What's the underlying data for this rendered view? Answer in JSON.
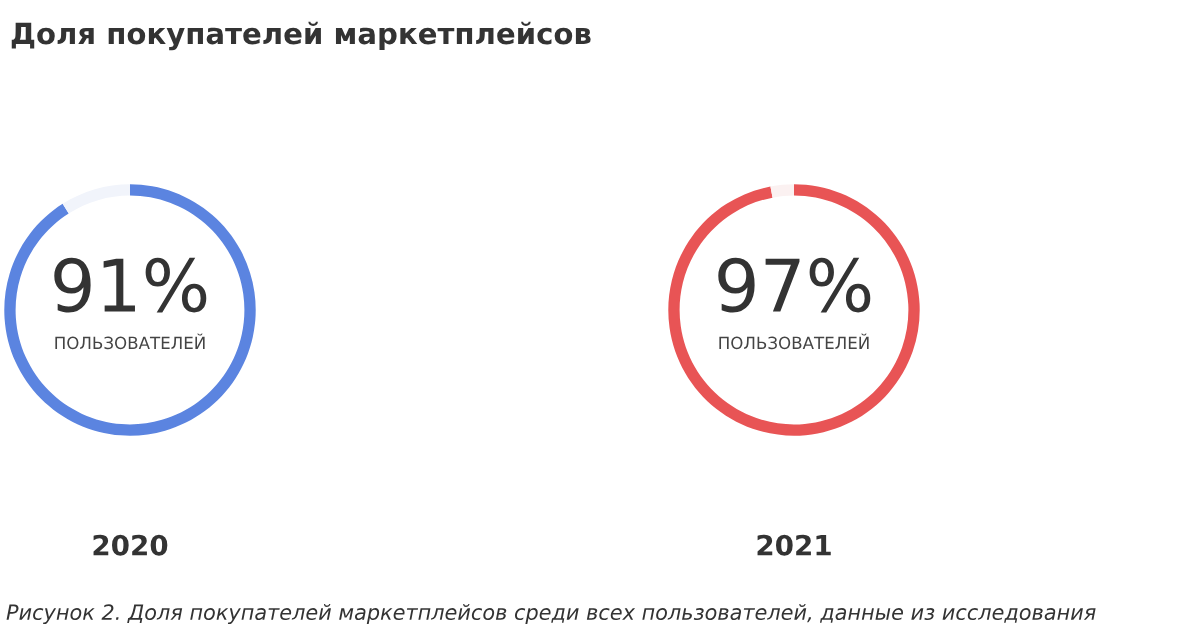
{
  "chart_data": [
    {
      "type": "donut",
      "title": "Доля покупателей маркетплейсов",
      "xlabel": "2020",
      "categories": [
        null,
        null
      ],
      "values": [
        91,
        9
      ],
      "colors": [
        "#5b84e0",
        "#f1f4fb"
      ],
      "annotations": [
        "91%",
        "ПОЛЬЗОВАТЕЛЕЙ",
        "Рисунок 2. Доля покупателей маркетплейсов среди всех пользователей, данные из исследования"
      ]
    },
    {
      "type": "donut",
      "xlabel": "2021",
      "categories": [
        null,
        null
      ],
      "values": [
        97,
        3
      ],
      "colors": [
        "#e85455",
        "#fbf1f1"
      ],
      "annotations": [
        "97%",
        "ПОЛЬЗОВАТЕЛЕЙ"
      ]
    }
  ]
}
